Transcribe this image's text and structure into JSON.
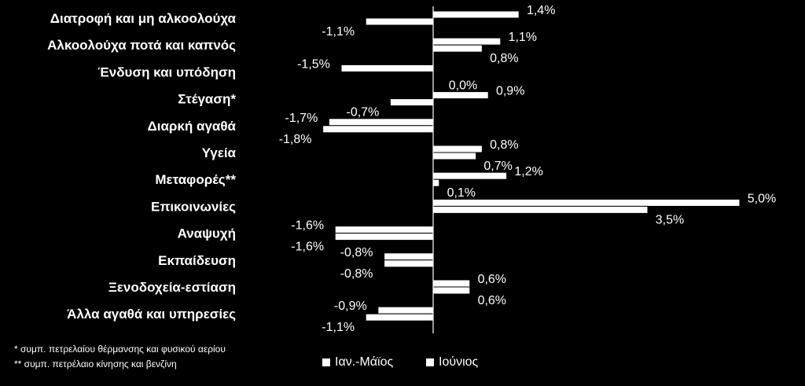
{
  "chart_data": {
    "type": "bar",
    "orientation": "horizontal",
    "categories": [
      "Διατροφή και μη αλκοολούχα",
      "Αλκοολούχα ποτά και καπνός",
      "Ένδυση και υπόδηση",
      "Στέγαση*",
      "Διαρκή αγαθά",
      "Υγεία",
      "Μεταφορές**",
      "Επικοινωνίες",
      "Αναψυχή",
      "Εκπαίδευση",
      "Ξενοδοχεία-εστίαση",
      "Άλλα αγαθά και υπηρεσίες"
    ],
    "series": [
      {
        "name": "Ιαν.-Μάϊος",
        "values": [
          1.4,
          1.1,
          -1.5,
          0.9,
          -1.7,
          0.8,
          1.2,
          5.0,
          -1.6,
          -0.8,
          0.6,
          -0.9
        ],
        "labels": [
          "1,4%",
          "1,1%",
          "-1,5%",
          "0,9%",
          "-1,7%",
          "0,8%",
          "1,2%",
          "5,0%",
          "-1,6%",
          "-0,8%",
          "0,6%",
          "-0,9%"
        ]
      },
      {
        "name": "Ιούνιος",
        "values": [
          -1.1,
          0.8,
          0.0,
          -0.7,
          -1.8,
          0.7,
          0.1,
          3.5,
          -1.6,
          -0.8,
          0.6,
          -1.1
        ],
        "labels": [
          "-1,1%",
          "0,8%",
          "0,0%",
          "-0,7%",
          "-1,8%",
          "0,7%",
          "0,1%",
          "3,5%",
          "-1,6%",
          "-0,8%",
          "0,6%",
          "-1,1%"
        ]
      }
    ],
    "xlim": [
      -2.0,
      5.0
    ],
    "grid": false,
    "legend_position": "bottom-right",
    "colors": {
      "background": "#000000",
      "bars": "#ffffff",
      "axis": "#ffffff",
      "text": "#ffffff"
    }
  },
  "footnotes": {
    "note1": "* συμπ. πετρελαίου θέρμανσης και φυσικού αερίου",
    "note2": "** συμπ. πετρέλαιο κίνησης και βενζίνη"
  }
}
